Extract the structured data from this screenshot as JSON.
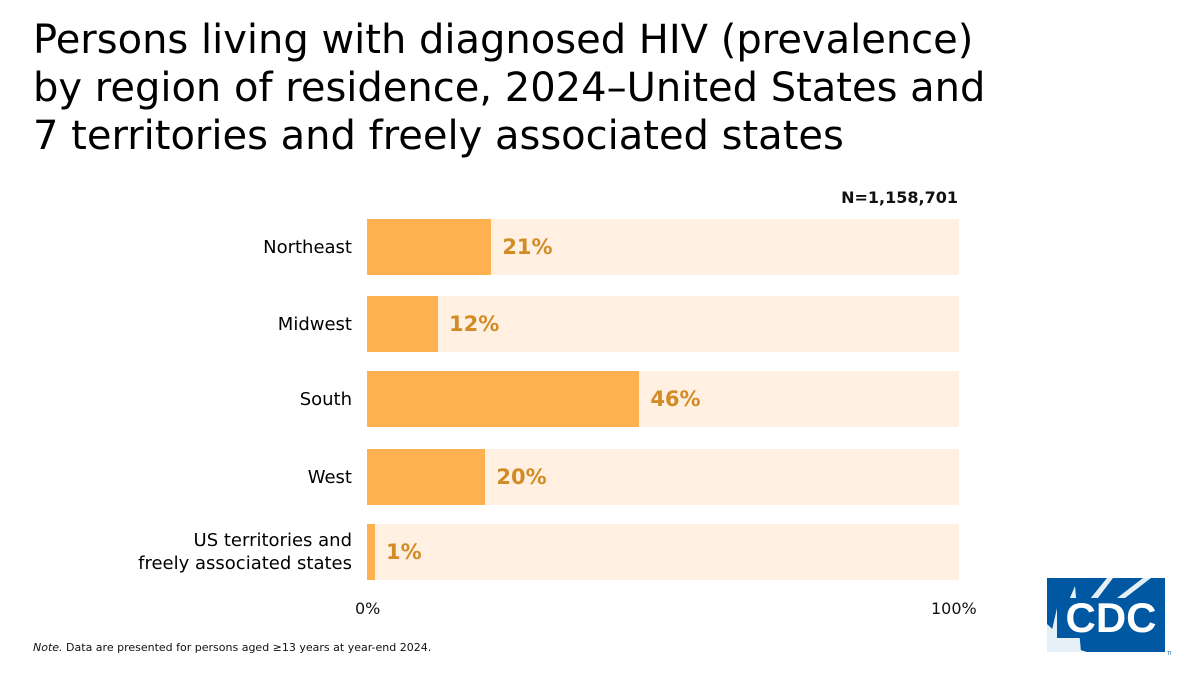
{
  "title_lines": [
    "Persons living with diagnosed HIV (prevalence)",
    "by region of residence, 2024–United States and",
    "7 territories and freely associated states"
  ],
  "n_label": "N=1,158,701",
  "note": {
    "prefix": "Note.",
    "text": " Data are presented for persons aged ≥13 years at year-end 2024."
  },
  "logo": {
    "text": "CDC",
    "color": "#0058a3"
  },
  "colors": {
    "bar": "#fdb150",
    "track": "#fff0e1",
    "value_text": "#d38b25"
  },
  "chart_data": {
    "type": "bar",
    "orientation": "horizontal",
    "title": "Persons living with diagnosed HIV (prevalence) by region of residence, 2024–United States and 7 territories and freely associated states",
    "categories": [
      "Northeast",
      "Midwest",
      "South",
      "West",
      "US territories and freely associated states"
    ],
    "category_lines": [
      [
        "Northeast"
      ],
      [
        "Midwest"
      ],
      [
        "South"
      ],
      [
        "West"
      ],
      [
        "US territories and",
        "freely associated states"
      ]
    ],
    "values": [
      21,
      12,
      46,
      20,
      1
    ],
    "value_labels": [
      "21%",
      "12%",
      "46%",
      "20%",
      "1%"
    ],
    "xlim": [
      0,
      100
    ],
    "x_ticks": [
      "0%",
      "100%"
    ],
    "grid": false,
    "legend": "none"
  }
}
